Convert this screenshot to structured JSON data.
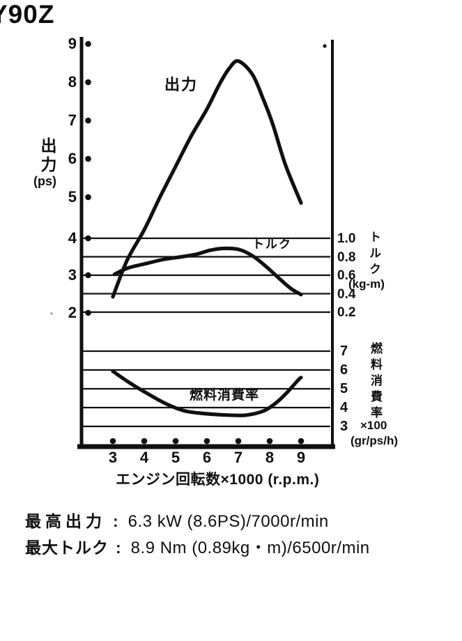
{
  "title": "Y90Z",
  "chart": {
    "power_axis": {
      "title": "出力",
      "unit": "(ps)",
      "ticks": [
        "9",
        "8",
        "7",
        "6",
        "5",
        "4",
        "3",
        "2"
      ]
    },
    "torque_axis": {
      "title": "トルク",
      "unit": "(kg-m)",
      "ticks": [
        "1.0",
        "0.8",
        "0.6",
        "0.4",
        "0.2"
      ]
    },
    "fuel_axis": {
      "title": "燃料消費率",
      "unit_multiplier": "×100",
      "unit": "(gr/ps/h)",
      "ticks": [
        "7",
        "6",
        "5",
        "4",
        "3"
      ]
    },
    "xlabel": "エンジン回転数×1000 (r.p.m.)",
    "x_ticks": [
      "3",
      "4",
      "5",
      "6",
      "7",
      "8",
      "9"
    ]
  },
  "chart_data": {
    "type": "line",
    "xlabel": "エンジン回転数×1000 (r.p.m.)",
    "x_range": [
      3,
      9
    ],
    "grid": "horizontal lines in torque and fuel bands only",
    "axes_ranges": {
      "power_ps": [
        2,
        9
      ],
      "torque_kgm": [
        0.2,
        1.0
      ],
      "fuel_x100_gr_ps_h": [
        3,
        7
      ]
    },
    "series": [
      {
        "name": "出力",
        "axis": "power",
        "unit": "ps",
        "x": [
          3.0,
          3.45,
          4.0,
          4.5,
          5.0,
          5.5,
          6.0,
          6.4,
          6.7,
          7.0,
          7.45,
          7.8,
          8.1,
          8.5,
          9.0
        ],
        "y": [
          2.4,
          3.35,
          4.15,
          5.0,
          5.8,
          6.6,
          7.3,
          7.95,
          8.35,
          8.55,
          8.2,
          7.55,
          6.9,
          5.85,
          4.85
        ]
      },
      {
        "name": "トルク",
        "axis": "torque",
        "unit": "kg-m",
        "x": [
          3.05,
          3.5,
          4.1,
          4.6,
          5.2,
          5.7,
          6.1,
          6.5,
          7.0,
          7.45,
          7.9,
          8.35,
          8.7,
          9.0
        ],
        "y": [
          0.61,
          0.68,
          0.73,
          0.77,
          0.8,
          0.83,
          0.87,
          0.89,
          0.88,
          0.81,
          0.69,
          0.55,
          0.45,
          0.39
        ]
      },
      {
        "name": "燃料消費率",
        "axis": "fuel",
        "unit": "×100 gr/ps/h",
        "x": [
          3.0,
          3.55,
          4.1,
          4.7,
          5.3,
          6.0,
          6.7,
          7.25,
          7.8,
          8.2,
          8.55,
          8.9,
          9.0
        ],
        "y": [
          5.93,
          5.3,
          4.75,
          4.2,
          3.82,
          3.67,
          3.6,
          3.6,
          3.82,
          4.25,
          4.8,
          5.45,
          5.6
        ]
      }
    ]
  },
  "specs": {
    "colon": ":",
    "max_power": {
      "label": "最高出力",
      "value": "6.3 kW (8.6PS)/7000r/min"
    },
    "max_torque": {
      "label": "最大トルク",
      "value": "8.9 Nm (0.89kg・m)/6500r/min"
    }
  }
}
